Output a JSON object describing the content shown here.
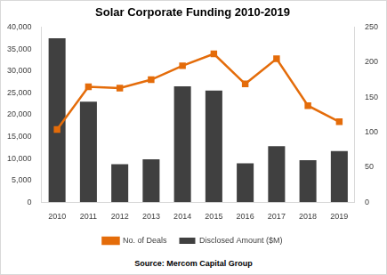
{
  "chart_data": {
    "type": "bar",
    "title": "Solar Corporate Funding 2010-2019",
    "source": "Source: Mercom Capital Group",
    "categories": [
      "2010",
      "2011",
      "2012",
      "2013",
      "2014",
      "2015",
      "2016",
      "2017",
      "2018",
      "2019"
    ],
    "series": [
      {
        "name": "Disclosed Amount ($M)",
        "color": "#404040",
        "values": [
          37500,
          23000,
          8700,
          9800,
          26500,
          25500,
          8900,
          12800,
          9600,
          11700
        ]
      },
      {
        "name": "No. of Deals",
        "type": "line",
        "color": "#E46C0A",
        "marker": "square",
        "axis": "y2",
        "values": [
          104,
          165,
          163,
          175,
          195,
          212,
          169,
          205,
          138,
          115
        ]
      }
    ],
    "ylim": [
      0,
      40000
    ],
    "yticks": [
      0,
      {
        "value": 5000,
        "label": "5,000"
      },
      {
        "value": 10000,
        "label": "10,000"
      },
      {
        "value": 15000,
        "label": "15,000"
      },
      {
        "value": 20000,
        "label": "20,000"
      },
      {
        "value": 25000,
        "label": "25,000"
      },
      {
        "value": 30000,
        "label": "30,000"
      },
      {
        "value": 35000,
        "label": "35,000"
      },
      {
        "value": 40000,
        "label": "40,000"
      }
    ],
    "y2lim": [
      0,
      250
    ],
    "y2ticks": [
      0,
      50,
      100,
      150,
      200,
      250
    ],
    "grid": false,
    "legend": "bottom"
  }
}
